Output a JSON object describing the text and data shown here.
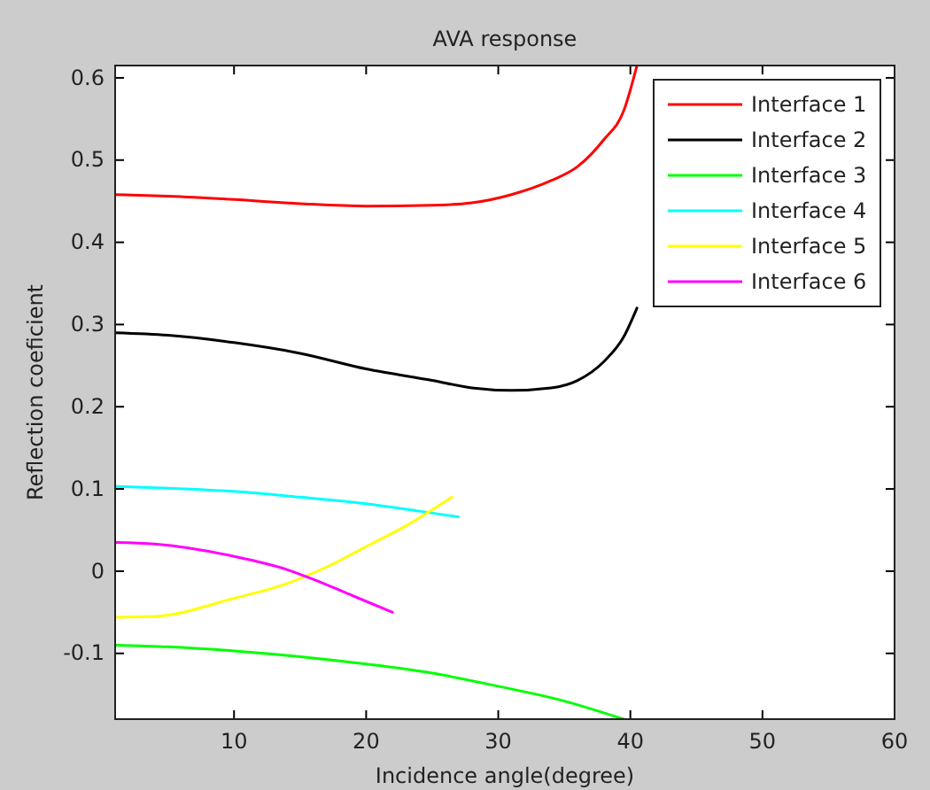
{
  "chart_data": {
    "type": "line",
    "title": "AVA response",
    "xlabel": "Incidence angle(degree)",
    "ylabel": "Reflection coeficient",
    "xlim": [
      1,
      60
    ],
    "ylim": [
      -0.18,
      0.615
    ],
    "xticks": [
      10,
      20,
      30,
      40,
      50,
      60
    ],
    "yticks": [
      -0.1,
      0,
      0.1,
      0.2,
      0.3,
      0.4,
      0.5,
      0.6
    ],
    "grid": false,
    "legend": "top right",
    "line_style": "solid",
    "marker": "none",
    "series": [
      {
        "name": "Interface 1",
        "color": "#ff0000",
        "x": [
          1,
          5,
          10,
          15,
          20,
          25,
          28,
          31,
          34,
          36,
          38,
          39.5,
          40.5
        ],
        "values": [
          0.458,
          0.456,
          0.452,
          0.447,
          0.444,
          0.445,
          0.448,
          0.458,
          0.475,
          0.492,
          0.525,
          0.56,
          0.615
        ]
      },
      {
        "name": "Interface 2",
        "color": "#000000",
        "x": [
          1,
          5,
          10,
          15,
          20,
          25,
          28,
          31,
          34,
          36,
          38,
          39.5,
          40.5
        ],
        "values": [
          0.29,
          0.287,
          0.278,
          0.265,
          0.246,
          0.232,
          0.223,
          0.22,
          0.223,
          0.232,
          0.255,
          0.285,
          0.32
        ]
      },
      {
        "name": "Interface 3",
        "color": "#00ff00",
        "x": [
          1,
          5,
          10,
          15,
          20,
          25,
          30,
          35,
          39.5
        ],
        "values": [
          -0.09,
          -0.092,
          -0.097,
          -0.104,
          -0.113,
          -0.124,
          -0.14,
          -0.158,
          -0.18
        ]
      },
      {
        "name": "Interface 4",
        "color": "#00ffff",
        "x": [
          1,
          5,
          10,
          15,
          20,
          24,
          27
        ],
        "values": [
          0.103,
          0.101,
          0.097,
          0.09,
          0.082,
          0.073,
          0.066
        ]
      },
      {
        "name": "Interface 5",
        "color": "#ffff00",
        "x": [
          1,
          4,
          10,
          14,
          17,
          20,
          23,
          26.5
        ],
        "values": [
          -0.056,
          -0.055,
          -0.033,
          -0.015,
          0.005,
          0.03,
          0.055,
          0.09
        ]
      },
      {
        "name": "Interface 6",
        "color": "#ff00ff",
        "x": [
          1,
          4,
          10,
          14,
          16,
          19,
          22
        ],
        "values": [
          0.035,
          0.033,
          0.018,
          0.002,
          -0.01,
          -0.03,
          -0.05
        ]
      }
    ]
  }
}
